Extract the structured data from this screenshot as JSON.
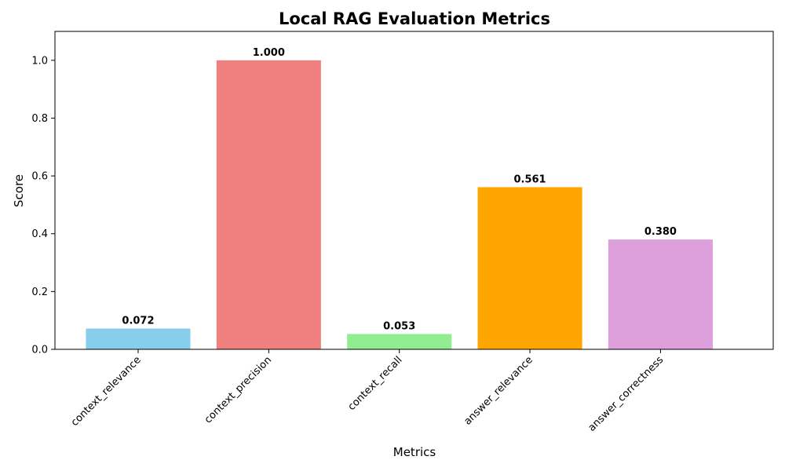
{
  "chart_data": {
    "type": "bar",
    "title": "Local RAG Evaluation Metrics",
    "xlabel": "Metrics",
    "ylabel": "Score",
    "categories": [
      "context_relevance",
      "context_precision",
      "context_recall",
      "answer_relevance",
      "answer_correctness"
    ],
    "values": [
      0.072,
      1.0,
      0.053,
      0.561,
      0.38
    ],
    "value_labels": [
      "0.072",
      "1.000",
      "0.053",
      "0.561",
      "0.380"
    ],
    "colors": [
      "#87ceeb",
      "#f08080",
      "#90ee90",
      "#ffa500",
      "#dda0dd"
    ],
    "ylim": [
      0,
      1.1
    ],
    "yticks": [
      0.0,
      0.2,
      0.4,
      0.6,
      0.8,
      1.0
    ],
    "ytick_labels": [
      "0.0",
      "0.2",
      "0.4",
      "0.6",
      "0.8",
      "1.0"
    ],
    "grid": false,
    "legend": false
  }
}
